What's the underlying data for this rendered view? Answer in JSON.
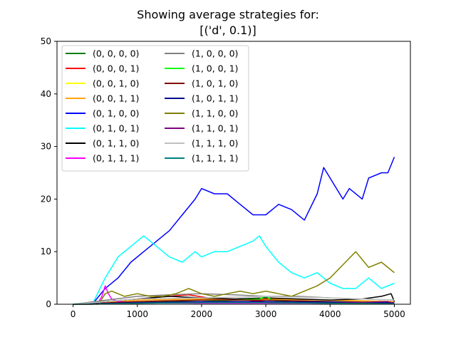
{
  "chart_data": {
    "type": "line",
    "title_line1": "Showing average strategies for:",
    "title_line2": "[('d', 0.1)]",
    "xlabel": "",
    "ylabel": "",
    "xlim": [
      -250,
      5250
    ],
    "ylim": [
      0,
      50
    ],
    "xticks": [
      0,
      1000,
      2000,
      3000,
      4000,
      5000
    ],
    "yticks": [
      0,
      10,
      20,
      30,
      40,
      50
    ],
    "grid": false,
    "legend_placement": "top-left",
    "legend_columns": 2,
    "series": [
      {
        "name": "(0, 0, 0, 0)",
        "color": "#008000",
        "x": [
          0,
          500,
          1000,
          2000,
          3000,
          4000,
          5000
        ],
        "values": [
          0,
          0.2,
          0.5,
          0.5,
          0.5,
          0.3,
          0.2
        ]
      },
      {
        "name": "(0, 0, 0, 1)",
        "color": "#ff0000",
        "x": [
          0,
          500,
          1000,
          1500,
          1800,
          2100,
          2500,
          3000,
          3500,
          4000,
          5000
        ],
        "values": [
          0,
          0.2,
          1.0,
          1.5,
          1.8,
          1.2,
          1.0,
          0.5,
          0.3,
          0.2,
          0.1
        ]
      },
      {
        "name": "(0, 0, 1, 0)",
        "color": "#ffff00",
        "x": [
          0,
          1000,
          2000,
          3000,
          4000,
          5000
        ],
        "values": [
          0,
          0.5,
          0.8,
          0.8,
          0.5,
          0.4
        ]
      },
      {
        "name": "(0, 0, 1, 1)",
        "color": "#ffa500",
        "x": [
          0,
          1000,
          2000,
          3000,
          4000,
          5000
        ],
        "values": [
          0,
          0.8,
          1.0,
          1.0,
          0.8,
          0.5
        ]
      },
      {
        "name": "(0, 1, 0, 0)",
        "color": "#0000ff",
        "x": [
          0,
          300,
          500,
          700,
          900,
          1100,
          1300,
          1500,
          1700,
          1900,
          2000,
          2200,
          2400,
          2600,
          2800,
          3000,
          3200,
          3400,
          3600,
          3800,
          3900,
          4000,
          4200,
          4300,
          4500,
          4600,
          4800,
          4900,
          5000
        ],
        "values": [
          0,
          0,
          3,
          5,
          8,
          10,
          12,
          14,
          17,
          20,
          22,
          21,
          21,
          19,
          17,
          17,
          19,
          18,
          16,
          21,
          26,
          24,
          20,
          22,
          20,
          24,
          25,
          25,
          28
        ]
      },
      {
        "name": "(0, 1, 0, 1)",
        "color": "#00ffff",
        "x": [
          0,
          300,
          500,
          700,
          900,
          1100,
          1300,
          1500,
          1700,
          1900,
          2000,
          2200,
          2400,
          2600,
          2800,
          2900,
          3000,
          3200,
          3400,
          3600,
          3800,
          4000,
          4200,
          4400,
          4600,
          4800,
          5000
        ],
        "values": [
          0,
          0,
          5,
          9,
          11,
          13,
          11,
          9,
          8,
          10,
          9,
          10,
          10,
          11,
          12,
          13,
          11,
          8,
          6,
          5,
          6,
          4,
          3,
          3,
          5,
          3,
          4
        ]
      },
      {
        "name": "(0, 1, 1, 0)",
        "color": "#000000",
        "x": [
          0,
          1000,
          1500,
          2000,
          2500,
          3000,
          3500,
          4000,
          4500,
          4800,
          4950,
          5000
        ],
        "values": [
          0,
          1.0,
          1.5,
          1.2,
          1.0,
          1.2,
          1.0,
          0.8,
          1.0,
          1.5,
          2.0,
          0.5
        ]
      },
      {
        "name": "(0, 1, 1, 1)",
        "color": "#ff00ff",
        "x": [
          0,
          300,
          400,
          450,
          500,
          550,
          600,
          700,
          1000,
          2000,
          3000,
          4000,
          5000
        ],
        "values": [
          0,
          0,
          0.5,
          1.5,
          3.5,
          2,
          1.0,
          0.5,
          0.3,
          0.2,
          0.2,
          0.2,
          0.1
        ]
      },
      {
        "name": "(1, 0, 0, 0)",
        "color": "#808080",
        "x": [
          0,
          1000,
          1500,
          2000,
          2500,
          3000,
          3500,
          4000,
          4500,
          5000
        ],
        "values": [
          0,
          1.5,
          1.8,
          2.0,
          1.8,
          1.5,
          1.5,
          1.2,
          1.0,
          0.8
        ]
      },
      {
        "name": "(1, 0, 0, 1)",
        "color": "#00ff00",
        "x": [
          0,
          1000,
          2000,
          2900,
          3000,
          3100,
          3500,
          4000,
          5000
        ],
        "values": [
          0,
          0.2,
          0.5,
          1.0,
          1.5,
          0.8,
          0.3,
          0.2,
          0.1
        ]
      },
      {
        "name": "(1, 0, 1, 0)",
        "color": "#800000",
        "x": [
          0,
          1000,
          2000,
          3000,
          4000,
          5000
        ],
        "values": [
          0,
          0.5,
          0.8,
          0.8,
          0.5,
          0.3
        ]
      },
      {
        "name": "(1, 0, 1, 1)",
        "color": "#00008b",
        "x": [
          0,
          1000,
          2000,
          3000,
          4000,
          5000
        ],
        "values": [
          0,
          0.3,
          0.5,
          0.5,
          0.4,
          0.3
        ]
      },
      {
        "name": "(1, 1, 0, 0)",
        "color": "#808000",
        "x": [
          0,
          400,
          500,
          600,
          800,
          1000,
          1200,
          1400,
          1600,
          1800,
          2000,
          2200,
          2400,
          2600,
          2800,
          3000,
          3200,
          3400,
          3600,
          3800,
          4000,
          4200,
          4400,
          4600,
          4800,
          5000
        ],
        "values": [
          0,
          0,
          2,
          2.5,
          1.5,
          2,
          1.5,
          1.5,
          2.0,
          3.0,
          2.0,
          1.5,
          2.0,
          2.5,
          2.0,
          2.5,
          2.0,
          1.5,
          2.5,
          3.5,
          5.0,
          7.5,
          10.0,
          7.0,
          8.0,
          6.0
        ]
      },
      {
        "name": "(1, 1, 0, 1)",
        "color": "#800080",
        "x": [
          0,
          1000,
          2000,
          3000,
          4000,
          4900,
          5000
        ],
        "values": [
          0,
          0.2,
          0.3,
          0.3,
          0.2,
          0.5,
          0.2
        ]
      },
      {
        "name": "(1, 1, 1, 0)",
        "color": "#c0c0c0",
        "x": [
          0,
          1000,
          2000,
          3000,
          4000,
          5000
        ],
        "values": [
          0,
          1.0,
          1.2,
          1.5,
          1.2,
          0.8
        ]
      },
      {
        "name": "(1, 1, 1, 1)",
        "color": "#008080",
        "x": [
          0,
          1000,
          2000,
          3000,
          4000,
          5000
        ],
        "values": [
          0,
          0.2,
          0.3,
          0.3,
          0.2,
          0.1
        ]
      }
    ]
  }
}
